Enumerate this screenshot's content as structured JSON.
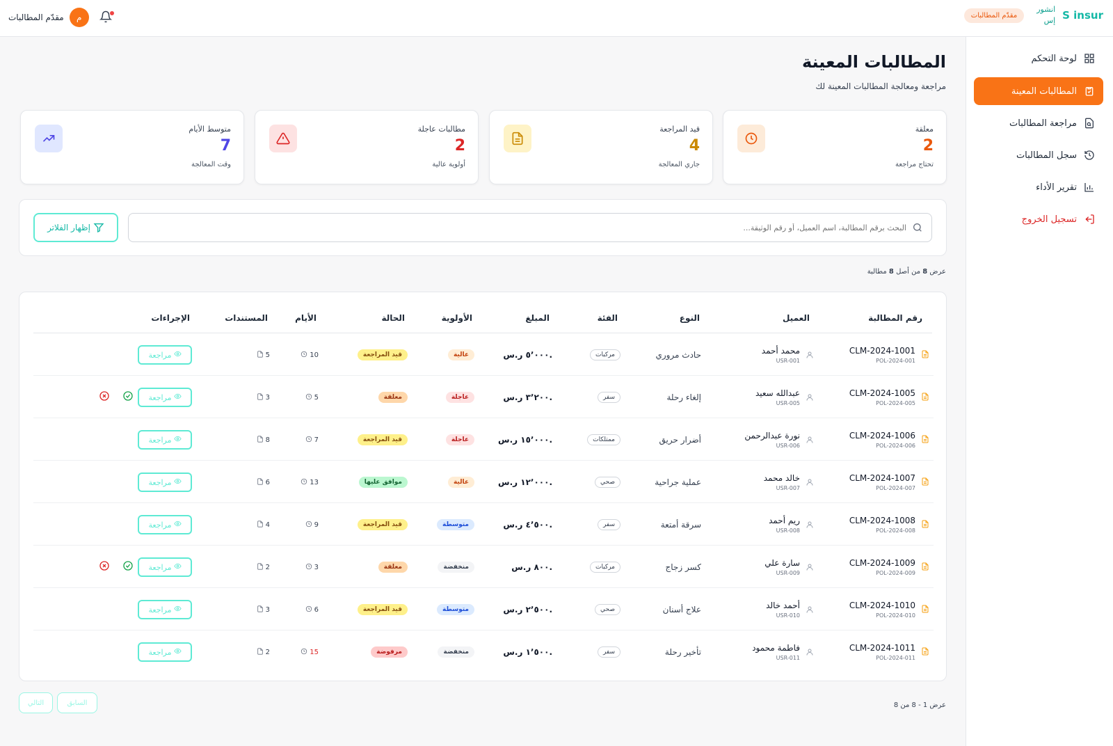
{
  "header": {
    "logo_en": "S insur",
    "logo_ar_1": "انشور",
    "logo_ar_2": "إس",
    "role_pill": "مقدّم المطالبات",
    "user_name": "مقدّم المطالبات",
    "avatar_initial": "م"
  },
  "sidebar": {
    "items": [
      {
        "label": "لوحة التحكم",
        "icon": "grid-icon",
        "active": false
      },
      {
        "label": "المطالبات المعينة",
        "icon": "clipboard-check-icon",
        "active": true
      },
      {
        "label": "مراجعة المطالبات",
        "icon": "file-search-icon",
        "active": false
      },
      {
        "label": "سجل المطالبات",
        "icon": "history-icon",
        "active": false
      },
      {
        "label": "تقرير الأداء",
        "icon": "bar-chart-icon",
        "active": false
      }
    ],
    "logout": "تسجيل الخروج"
  },
  "page": {
    "title": "المطالبات المعينة",
    "subtitle": "مراجعة ومعالجة المطالبات المعينة لك"
  },
  "stats": [
    {
      "label": "معلقة",
      "value": "2",
      "sub": "تحتاج مراجعة",
      "color": "#ea580c",
      "icon": "clock-icon",
      "icon_bg": "#fdebd9"
    },
    {
      "label": "قيد المراجعة",
      "value": "4",
      "sub": "جاري المعالجة",
      "color": "#ca8a04",
      "icon": "document-icon",
      "icon_bg": "#fef3c7"
    },
    {
      "label": "مطالبات عاجلة",
      "value": "2",
      "sub": "أولوية عالية",
      "color": "#dc2626",
      "icon": "warning-icon",
      "icon_bg": "#fde2e2"
    },
    {
      "label": "متوسط الأيام",
      "value": "7",
      "sub": "وقت المعالجة",
      "color": "#4f46e5",
      "icon": "trend-up-icon",
      "icon_bg": "#e0e7ff"
    }
  ],
  "search": {
    "placeholder": "البحث برقم المطالبة، اسم العميل، أو رقم الوثيقة...",
    "filter_label": "إظهار الفلاتر"
  },
  "results": {
    "prefix": "عرض",
    "shown": "8",
    "middle": "من أصل",
    "total": "8",
    "suffix": "مطالبة"
  },
  "table": {
    "columns": {
      "claim": "رقم المطالبة",
      "customer": "العميل",
      "type": "النوع",
      "category": "الفئة",
      "amount": "المبلغ",
      "priority": "الأولوية",
      "status": "الحالة",
      "days": "الأيام",
      "docs": "المستندات",
      "actions": "الإجراءات"
    },
    "review_label": "مراجعة",
    "rows": [
      {
        "claim": "CLM-2024-1001",
        "policy": "POL-2024-001",
        "customer": "محمد أحمد",
        "user_id": "USR-001",
        "type": "حادث مروري",
        "category": "مركبات",
        "amount": "٥٬٠٠٠ ر.س.",
        "priority": "عالية",
        "priority_color": "#c2410c",
        "priority_bg": "#ffedd5",
        "status": "قيد المراجعة",
        "status_color": "#854d0e",
        "status_bg": "#fef08a",
        "days": "10",
        "days_red": false,
        "docs": "5",
        "extra_actions": false
      },
      {
        "claim": "CLM-2024-1005",
        "policy": "POL-2024-005",
        "customer": "عبدالله سعيد",
        "user_id": "USR-005",
        "type": "إلغاء رحلة",
        "category": "سفر",
        "amount": "٣٬٢٠٠ ر.س.",
        "priority": "عاجلة",
        "priority_color": "#b91c1c",
        "priority_bg": "#fee2e2",
        "status": "معلقة",
        "status_color": "#9a3412",
        "status_bg": "#fed7aa",
        "days": "5",
        "days_red": false,
        "docs": "3",
        "extra_actions": true
      },
      {
        "claim": "CLM-2024-1006",
        "policy": "POL-2024-006",
        "customer": "نورة عبدالرحمن",
        "user_id": "USR-006",
        "type": "أضرار حريق",
        "category": "ممتلكات",
        "amount": "١٥٬٠٠٠ ر.س.",
        "priority": "عاجلة",
        "priority_color": "#b91c1c",
        "priority_bg": "#fee2e2",
        "status": "قيد المراجعة",
        "status_color": "#854d0e",
        "status_bg": "#fef08a",
        "days": "7",
        "days_red": false,
        "docs": "8",
        "extra_actions": false
      },
      {
        "claim": "CLM-2024-1007",
        "policy": "POL-2024-007",
        "customer": "خالد محمد",
        "user_id": "USR-007",
        "type": "عملية جراحية",
        "category": "صحي",
        "amount": "١٢٬٠٠٠ ر.س.",
        "priority": "عالية",
        "priority_color": "#c2410c",
        "priority_bg": "#ffedd5",
        "status": "موافق عليها",
        "status_color": "#166534",
        "status_bg": "#bbf7d0",
        "days": "13",
        "days_red": false,
        "docs": "6",
        "extra_actions": false
      },
      {
        "claim": "CLM-2024-1008",
        "policy": "POL-2024-008",
        "customer": "ريم أحمد",
        "user_id": "USR-008",
        "type": "سرقة أمتعة",
        "category": "سفر",
        "amount": "٤٬٥٠٠ ر.س.",
        "priority": "متوسطة",
        "priority_color": "#1d4ed8",
        "priority_bg": "#dbeafe",
        "status": "قيد المراجعة",
        "status_color": "#854d0e",
        "status_bg": "#fef08a",
        "days": "9",
        "days_red": false,
        "docs": "4",
        "extra_actions": false
      },
      {
        "claim": "CLM-2024-1009",
        "policy": "POL-2024-009",
        "customer": "سارة علي",
        "user_id": "USR-009",
        "type": "كسر زجاج",
        "category": "مركبات",
        "amount": "٨٠٠ ر.س.",
        "priority": "منخفضة",
        "priority_color": "#374151",
        "priority_bg": "#f3f4f6",
        "status": "معلقة",
        "status_color": "#9a3412",
        "status_bg": "#fed7aa",
        "days": "3",
        "days_red": false,
        "docs": "2",
        "extra_actions": true
      },
      {
        "claim": "CLM-2024-1010",
        "policy": "POL-2024-010",
        "customer": "أحمد خالد",
        "user_id": "USR-010",
        "type": "علاج أسنان",
        "category": "صحي",
        "amount": "٢٬٥٠٠ ر.س.",
        "priority": "متوسطة",
        "priority_color": "#1d4ed8",
        "priority_bg": "#dbeafe",
        "status": "قيد المراجعة",
        "status_color": "#854d0e",
        "status_bg": "#fef08a",
        "days": "6",
        "days_red": false,
        "docs": "3",
        "extra_actions": false
      },
      {
        "claim": "CLM-2024-1011",
        "policy": "POL-2024-011",
        "customer": "فاطمة محمود",
        "user_id": "USR-011",
        "type": "تأخير رحلة",
        "category": "سفر",
        "amount": "١٬٥٠٠ ر.س.",
        "priority": "منخفضة",
        "priority_color": "#374151",
        "priority_bg": "#f3f4f6",
        "status": "مرفوضة",
        "status_color": "#b91c1c",
        "status_bg": "#fecaca",
        "days": "15",
        "days_red": true,
        "docs": "2",
        "extra_actions": false
      }
    ]
  },
  "pagination": {
    "info": "عرض 1 - 8 من 8",
    "prev": "السابق",
    "next": "التالي"
  }
}
